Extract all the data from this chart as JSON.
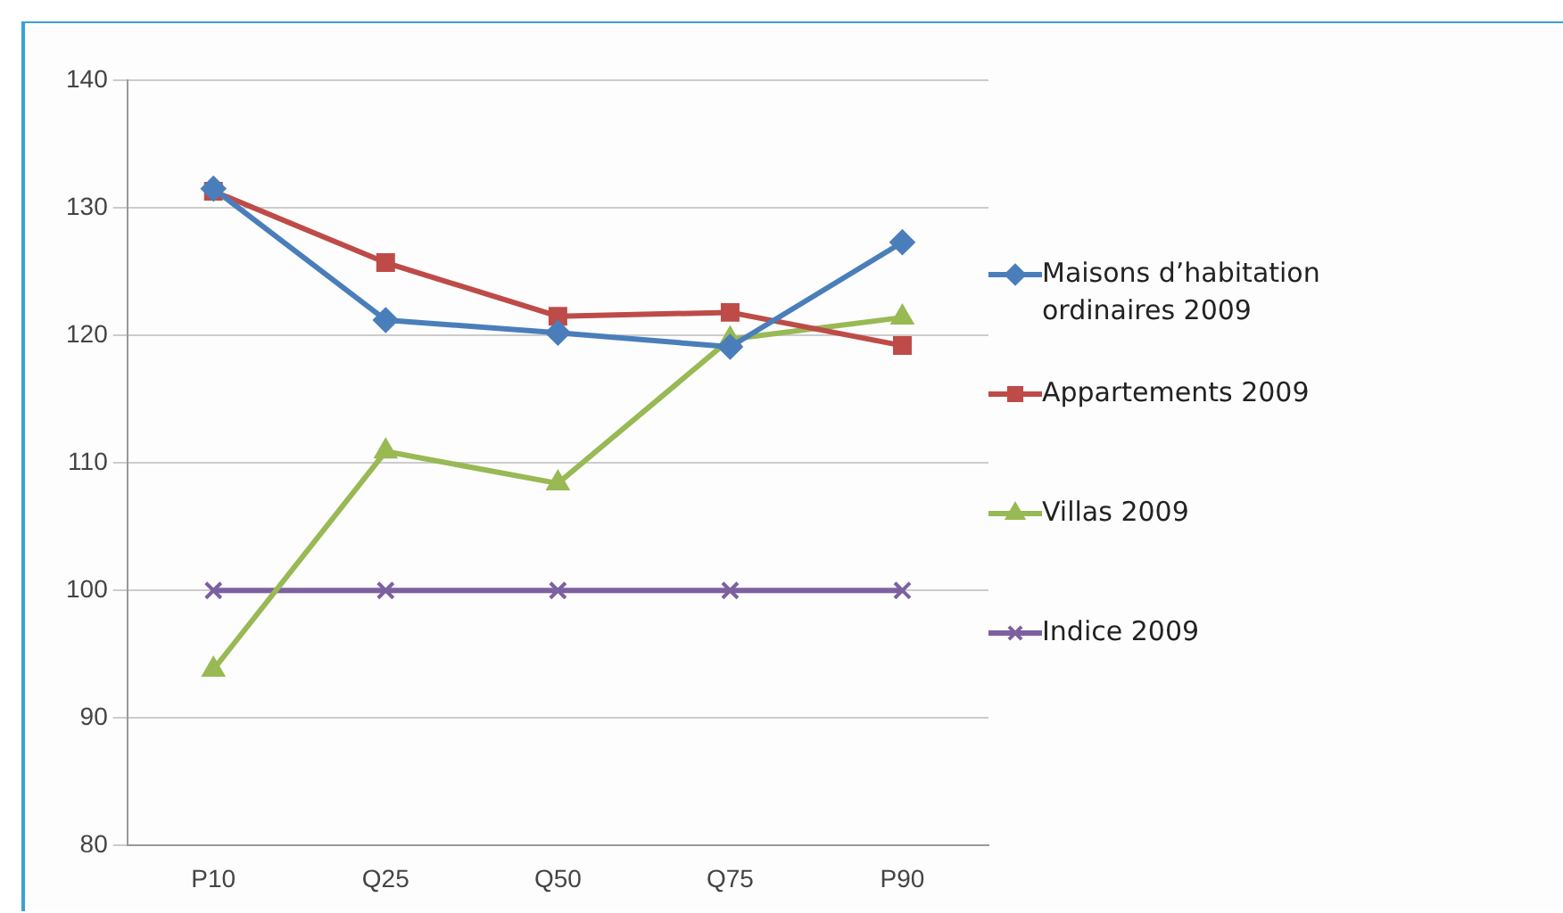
{
  "chart_data": {
    "type": "line",
    "categories": [
      "P10",
      "Q25",
      "Q50",
      "Q75",
      "P90"
    ],
    "ylim": [
      80,
      140
    ],
    "yticks": [
      80,
      90,
      100,
      110,
      120,
      130,
      140
    ],
    "grid": "y",
    "legend": "right",
    "line_style": "solid",
    "series": [
      {
        "name": "Maisons d’habitation ordinaires 2009",
        "color": "#4a7ebb",
        "marker": "diamond",
        "values": [
          131.5,
          121.2,
          120.2,
          119.1,
          127.3
        ]
      },
      {
        "name": "Appartements 2009",
        "color": "#be4b48",
        "marker": "square",
        "values": [
          131.3,
          125.7,
          121.5,
          121.8,
          119.2
        ]
      },
      {
        "name": "Villas 2009",
        "color": "#98b954",
        "marker": "triangle",
        "values": [
          93.8,
          110.9,
          108.4,
          119.7,
          121.4
        ]
      },
      {
        "name": "Indice 2009",
        "color": "#7d60a0",
        "marker": "cross",
        "values": [
          100,
          100,
          100,
          100,
          100
        ]
      }
    ]
  }
}
